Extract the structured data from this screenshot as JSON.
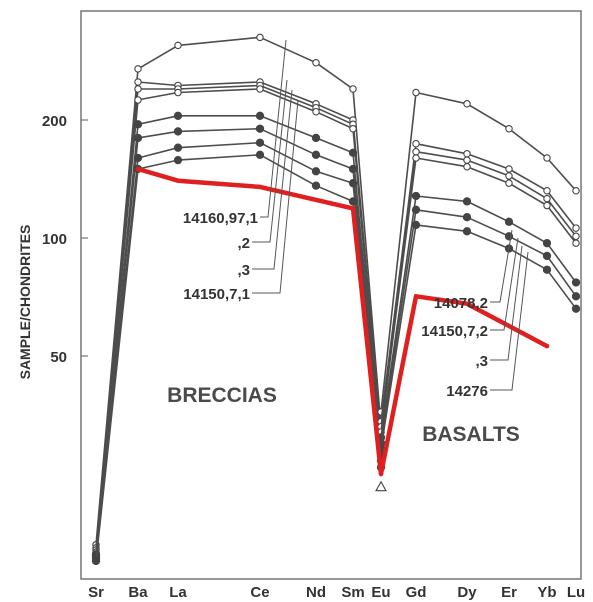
{
  "chart_data": {
    "type": "line",
    "y_scale": "log",
    "ylabel": "SAMPLE/CHONDRITES",
    "ylim": [
      19,
      330
    ],
    "y_ticks": [
      {
        "value": 50,
        "label": "50"
      },
      {
        "value": 100,
        "label": "100"
      },
      {
        "value": 200,
        "label": "200"
      }
    ],
    "x_ticks": [
      {
        "element": "Sr",
        "label": "Sr"
      },
      {
        "element": "Ba",
        "label": "Ba"
      },
      {
        "element": "La",
        "label": "La"
      },
      {
        "element": "Ce",
        "label": "Ce"
      },
      {
        "element": "Nd",
        "label": "Nd"
      },
      {
        "element": "Sm",
        "label": "Sm"
      },
      {
        "element": "Eu",
        "label": "Eu"
      },
      {
        "element": "Gd",
        "label": "Gd"
      },
      {
        "element": "Dy",
        "label": "Dy"
      },
      {
        "element": "Er",
        "label": "Er"
      },
      {
        "element": "Yb",
        "label": "Yb"
      },
      {
        "element": "Lu",
        "label": "Lu"
      }
    ],
    "group_labels": {
      "breccias": "BRECCIAS",
      "basalts": "BASALTS"
    },
    "sample_labels": {
      "breccia": [
        "14160,97,1",
        ",2",
        ",3",
        "14150,7,1"
      ],
      "basalt": [
        "14078,2",
        "14150,7,2",
        ",3",
        "14276"
      ]
    },
    "colors": {
      "lines": "#4d4d4d",
      "highlight": "#e02020",
      "text": "#333333"
    },
    "breccia_series": [
      {
        "markers": "open",
        "points": [
          [
            "Sr",
            16.5
          ],
          [
            "Ba",
            270
          ],
          [
            "La",
            310
          ],
          [
            "Ce",
            325
          ],
          [
            "Nd",
            280
          ],
          [
            "Sm",
            240
          ],
          [
            "Eu",
            33
          ]
        ]
      },
      {
        "markers": "open",
        "points": [
          [
            "Sr",
            16.2
          ],
          [
            "Ba",
            250
          ],
          [
            "La",
            245
          ],
          [
            "Ce",
            250
          ],
          [
            "Nd",
            220
          ],
          [
            "Sm",
            200
          ],
          [
            "Eu",
            32
          ]
        ]
      },
      {
        "markers": "open",
        "points": [
          [
            "Sr",
            16.0
          ],
          [
            "Ba",
            240
          ],
          [
            "La",
            240
          ],
          [
            "Ce",
            245
          ],
          [
            "Nd",
            215
          ],
          [
            "Sm",
            195
          ],
          [
            "Eu",
            31
          ]
        ]
      },
      {
        "markers": "open",
        "points": [
          [
            "Sr",
            15.8
          ],
          [
            "Ba",
            225
          ],
          [
            "La",
            235
          ],
          [
            "Ce",
            240
          ],
          [
            "Nd",
            210
          ],
          [
            "Sm",
            190
          ],
          [
            "Eu",
            30
          ]
        ]
      },
      {
        "markers": "filled",
        "points": [
          [
            "Sr",
            15.6
          ],
          [
            "Ba",
            195
          ],
          [
            "La",
            205
          ],
          [
            "Ce",
            205
          ],
          [
            "Nd",
            180
          ],
          [
            "Sm",
            165
          ],
          [
            "Eu",
            29
          ]
        ]
      },
      {
        "markers": "filled",
        "points": [
          [
            "Sr",
            15.4
          ],
          [
            "Ba",
            180
          ],
          [
            "La",
            187
          ],
          [
            "Ce",
            190
          ],
          [
            "Nd",
            163
          ],
          [
            "Sm",
            150
          ],
          [
            "Eu",
            28
          ]
        ]
      },
      {
        "markers": "filled",
        "points": [
          [
            "Sr",
            15.2
          ],
          [
            "Ba",
            160
          ],
          [
            "La",
            170
          ],
          [
            "Ce",
            175
          ],
          [
            "Nd",
            148
          ],
          [
            "Sm",
            138
          ],
          [
            "Eu",
            27
          ]
        ]
      },
      {
        "markers": "filled",
        "points": [
          [
            "Sr",
            15.0
          ],
          [
            "Ba",
            150
          ],
          [
            "La",
            158
          ],
          [
            "Ce",
            163
          ],
          [
            "Nd",
            136
          ],
          [
            "Sm",
            124
          ],
          [
            "Eu",
            26
          ]
        ]
      }
    ],
    "basalt_series": [
      {
        "markers": "open",
        "points": [
          [
            "Eu",
            36
          ],
          [
            "Gd",
            235
          ],
          [
            "Dy",
            220
          ],
          [
            "Er",
            190
          ],
          [
            "Yb",
            160
          ],
          [
            "Lu",
            132
          ]
        ]
      },
      {
        "markers": "open",
        "points": [
          [
            "Eu",
            34
          ],
          [
            "Gd",
            174
          ],
          [
            "Dy",
            164
          ],
          [
            "Er",
            150
          ],
          [
            "Yb",
            132
          ],
          [
            "Lu",
            106
          ]
        ]
      },
      {
        "markers": "open",
        "points": [
          [
            "Eu",
            33
          ],
          [
            "Gd",
            166
          ],
          [
            "Dy",
            158
          ],
          [
            "Er",
            144
          ],
          [
            "Yb",
            126
          ],
          [
            "Lu",
            101
          ]
        ]
      },
      {
        "markers": "open",
        "points": [
          [
            "Eu",
            32
          ],
          [
            "Gd",
            160
          ],
          [
            "Dy",
            152
          ],
          [
            "Er",
            138
          ],
          [
            "Yb",
            121
          ],
          [
            "Lu",
            97
          ]
        ]
      },
      {
        "markers": "filled",
        "points": [
          [
            "Eu",
            31
          ],
          [
            "Gd",
            128
          ],
          [
            "Dy",
            124
          ],
          [
            "Er",
            110
          ],
          [
            "Yb",
            97
          ],
          [
            "Lu",
            77
          ]
        ]
      },
      {
        "markers": "filled",
        "points": [
          [
            "Eu",
            30
          ],
          [
            "Gd",
            118
          ],
          [
            "Dy",
            113
          ],
          [
            "Er",
            101
          ],
          [
            "Yb",
            90
          ],
          [
            "Lu",
            71
          ]
        ]
      },
      {
        "markers": "filled",
        "points": [
          [
            "Eu",
            29
          ],
          [
            "Gd",
            108
          ],
          [
            "Dy",
            104
          ],
          [
            "Er",
            94
          ],
          [
            "Yb",
            83
          ],
          [
            "Lu",
            66
          ]
        ]
      }
    ],
    "highlight_series": {
      "markers": "none",
      "points": [
        [
          "Ba",
          150
        ],
        [
          "La",
          140
        ],
        [
          "Ce",
          135
        ],
        [
          "Sm",
          119
        ],
        [
          "Eu",
          25
        ],
        [
          "Gd",
          71
        ],
        [
          "Dy",
          68
        ],
        [
          "Yb",
          53
        ]
      ]
    },
    "highlight_eu_markers": [
      {
        "element": "Eu",
        "value": 23.2,
        "markers": "open-triangle"
      }
    ]
  }
}
